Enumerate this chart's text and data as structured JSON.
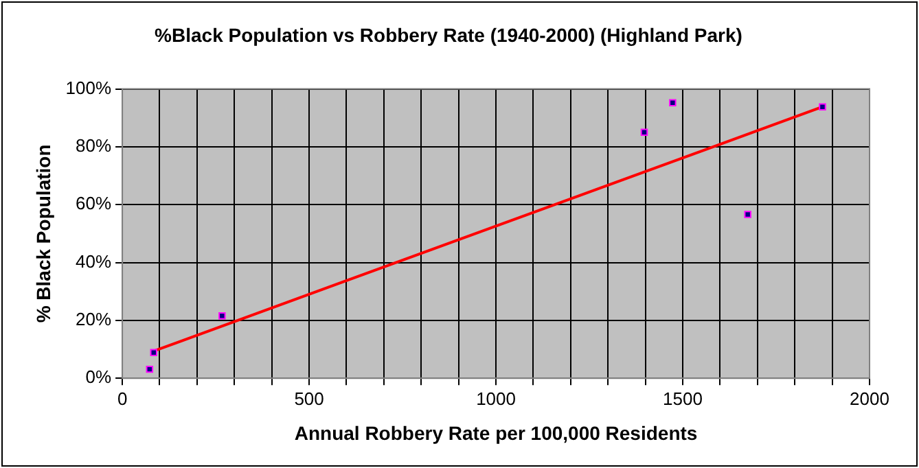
{
  "chart_data": {
    "type": "scatter",
    "title": "%Black Population vs Robbery Rate (1940-2000) (Highland Park)",
    "xlabel": "Annual Robbery Rate per 100,000 Residents",
    "ylabel": "% Black Population",
    "series": [
      {
        "type": "scatter",
        "marker": "square",
        "color": "#000080",
        "x": [
          73,
          84,
          267,
          1397,
          1473,
          1674,
          1874
        ],
        "values": [
          3.1,
          8.9,
          21.6,
          85.0,
          95.2,
          56.6,
          93.8
        ]
      },
      {
        "type": "line",
        "marker": "none",
        "color": "#ff0000",
        "x": [
          84,
          1874
        ],
        "values": [
          9.4,
          93.8
        ]
      }
    ],
    "xlim": [
      0,
      2000
    ],
    "xticks": [
      0,
      {
        "value": 100,
        "label": null
      },
      {
        "value": 200,
        "label": null
      },
      {
        "value": 300,
        "label": null
      },
      {
        "value": 400,
        "label": null
      },
      500,
      {
        "value": 600,
        "label": null
      },
      {
        "value": 700,
        "label": null
      },
      {
        "value": 800,
        "label": null
      },
      {
        "value": 900,
        "label": null
      },
      1000,
      {
        "value": 1100,
        "label": null
      },
      {
        "value": 1200,
        "label": null
      },
      {
        "value": 1300,
        "label": null
      },
      {
        "value": 1400,
        "label": null
      },
      1500,
      {
        "value": 1600,
        "label": null
      },
      {
        "value": 1700,
        "label": null
      },
      {
        "value": 1800,
        "label": null
      },
      {
        "value": 1900,
        "label": null
      },
      2000
    ],
    "ylim": [
      0,
      100
    ],
    "yticks": [
      {
        "value": 0,
        "label": "0%"
      },
      {
        "value": 20,
        "label": "20%"
      },
      {
        "value": 40,
        "label": "40%"
      },
      {
        "value": 60,
        "label": "60%"
      },
      {
        "value": 80,
        "label": "80%"
      },
      {
        "value": 100,
        "label": "100%"
      }
    ],
    "grid": true,
    "legend": false
  }
}
